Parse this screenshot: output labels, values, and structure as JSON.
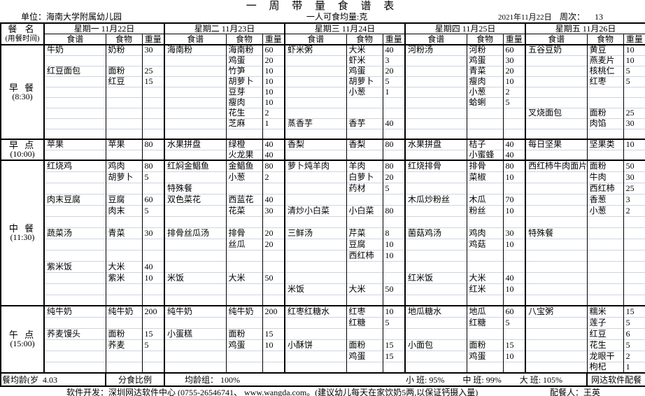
{
  "title": "一 周 带 量 食 谱 表",
  "info": {
    "unit": "单位：海南大学附属幼儿园",
    "portion": "一人可食均量:克",
    "date": "2021年11月22日",
    "week_label": "周次：",
    "week_value": "13"
  },
  "header": {
    "meal_col_title": "餐  名",
    "meal_col_subtitle": "(用餐时间)",
    "sub_columns": [
      "食谱",
      "食物",
      "重量"
    ],
    "days": [
      {
        "label": "星期一 11月22日"
      },
      {
        "label": "星期二 11月23日"
      },
      {
        "label": "星期三 11月24日"
      },
      {
        "label": "星期四 11月25日"
      },
      {
        "label": "星期五 11月26日"
      }
    ]
  },
  "sections": [
    {
      "name": "早 餐",
      "time": "(8:30)",
      "rows": [
        [
          [
            "牛奶",
            "奶粉",
            "30"
          ],
          [
            "海南粉",
            "海南粉",
            "60"
          ],
          [
            "虾米粥",
            "大米",
            "40"
          ],
          [
            "河粉汤",
            "河粉",
            "60"
          ],
          [
            "五谷豆奶",
            "黄豆",
            "10"
          ]
        ],
        [
          [
            "",
            "",
            ""
          ],
          [
            "",
            "鸡蛋",
            "20"
          ],
          [
            "",
            "虾米",
            "3"
          ],
          [
            "",
            "鸡蛋",
            "30"
          ],
          [
            "",
            "燕麦片",
            "10"
          ]
        ],
        [
          [
            "红豆面包",
            "面粉",
            "25"
          ],
          [
            "",
            "竹笋",
            "10"
          ],
          [
            "",
            "鸡蛋",
            "20"
          ],
          [
            "",
            "青菜",
            "20"
          ],
          [
            "",
            "核桃仁",
            "5"
          ]
        ],
        [
          [
            "",
            "红豆",
            "15"
          ],
          [
            "",
            "胡萝卜",
            "10"
          ],
          [
            "",
            "胡萝卜",
            "5"
          ],
          [
            "",
            "瘦肉",
            "10"
          ],
          [
            "",
            "红枣",
            "5"
          ]
        ],
        [
          [
            "",
            "",
            ""
          ],
          [
            "",
            "豆芽",
            "10"
          ],
          [
            "",
            "小葱",
            "1"
          ],
          [
            "",
            "小葱",
            "2"
          ],
          [
            "",
            "",
            ""
          ]
        ],
        [
          [
            "",
            "",
            ""
          ],
          [
            "",
            "瘦肉",
            "10"
          ],
          [
            "",
            "",
            ""
          ],
          [
            "",
            "蛤蜊",
            "5"
          ],
          [
            "",
            "",
            ""
          ]
        ],
        [
          [
            "",
            "",
            ""
          ],
          [
            "",
            "花生",
            "2"
          ],
          [
            "",
            "",
            ""
          ],
          [
            "",
            "",
            ""
          ],
          [
            "叉烧面包",
            "面粉",
            "25"
          ]
        ],
        [
          [
            "",
            "",
            ""
          ],
          [
            "",
            "芝麻",
            "1"
          ],
          [
            "蒸香芋",
            "香芋",
            "40"
          ],
          [
            "",
            "",
            ""
          ],
          [
            "",
            "肉馅",
            "30"
          ]
        ],
        [
          [
            "",
            "",
            ""
          ],
          [
            "",
            "",
            ""
          ],
          [
            "",
            "",
            ""
          ],
          [
            "",
            "",
            ""
          ],
          [
            "",
            "",
            ""
          ]
        ]
      ]
    },
    {
      "name": "早 点",
      "time": "(10:00)",
      "rows": [
        [
          [
            "苹果",
            "苹果",
            "80"
          ],
          [
            "水果拼盘",
            "绿橙",
            "40"
          ],
          [
            "香梨",
            "香梨",
            "80"
          ],
          [
            "水果拼盘",
            "桔子",
            "40"
          ],
          [
            "每日坚果",
            "坚果类",
            "10"
          ]
        ],
        [
          [
            "",
            "",
            ""
          ],
          [
            "",
            "火龙果",
            "40"
          ],
          [
            "",
            "",
            ""
          ],
          [
            "",
            "小蜜蜂",
            "40"
          ],
          [
            "",
            "",
            ""
          ]
        ]
      ]
    },
    {
      "name": "中 餐",
      "time": "(11:30)",
      "rows": [
        [
          [
            "红烧鸡",
            "鸡肉",
            "80"
          ],
          [
            "红焖金鲳鱼",
            "金鲳鱼",
            "80"
          ],
          [
            "萝卜炖羊肉",
            "羊肉",
            "80"
          ],
          [
            "红烧排骨",
            "排骨",
            "80"
          ],
          [
            "西红柿牛肉面片",
            "面粉",
            "50"
          ]
        ],
        [
          [
            "",
            "胡萝卜",
            "5"
          ],
          [
            "",
            "小葱",
            "2"
          ],
          [
            "",
            "白萝卜",
            "20"
          ],
          [
            "",
            "菜椒",
            "10"
          ],
          [
            "",
            "牛肉",
            "30"
          ]
        ],
        [
          [
            "",
            "",
            ""
          ],
          [
            "特殊餐",
            "",
            ""
          ],
          [
            "",
            "药材",
            "5"
          ],
          [
            "",
            "",
            ""
          ],
          [
            "",
            "西红柿",
            "25"
          ]
        ],
        [
          [
            "肉末豆腐",
            "豆腐",
            "60"
          ],
          [
            "双色菜花",
            "西蓝花",
            "40"
          ],
          [
            "",
            "",
            ""
          ],
          [
            "木瓜炒粉丝",
            "木瓜",
            "70"
          ],
          [
            "",
            "香葱",
            "3"
          ]
        ],
        [
          [
            "",
            "肉末",
            "5"
          ],
          [
            "",
            "花菜",
            "30"
          ],
          [
            "清炒小白菜",
            "小白菜",
            "80"
          ],
          [
            "",
            "粉丝",
            "10"
          ],
          [
            "",
            "小葱",
            "2"
          ]
        ],
        [
          [
            "",
            "",
            ""
          ],
          [
            "",
            "",
            ""
          ],
          [
            "",
            "",
            ""
          ],
          [
            "",
            "",
            ""
          ],
          [
            "",
            "",
            ""
          ]
        ],
        [
          [
            "蔬菜汤",
            "青菜",
            "30"
          ],
          [
            "排骨丝瓜汤",
            "排骨",
            "20"
          ],
          [
            "三鲜汤",
            "芹菜",
            "8"
          ],
          [
            "菌菇鸡汤",
            "鸡肉",
            "30"
          ],
          [
            "特殊餐",
            "",
            ""
          ]
        ],
        [
          [
            "",
            "",
            ""
          ],
          [
            "",
            "丝瓜",
            "20"
          ],
          [
            "",
            "豆腐",
            "10"
          ],
          [
            "",
            "鸡菇",
            "10"
          ],
          [
            "",
            "",
            ""
          ]
        ],
        [
          [
            "",
            "",
            ""
          ],
          [
            "",
            "",
            ""
          ],
          [
            "",
            "西红柿",
            "10"
          ],
          [
            "",
            "",
            ""
          ],
          [
            "",
            "",
            ""
          ]
        ],
        [
          [
            "紫米饭",
            "大米",
            "40"
          ],
          [
            "",
            "",
            ""
          ],
          [
            "",
            "",
            ""
          ],
          [
            "",
            "",
            ""
          ],
          [
            "",
            "",
            ""
          ]
        ],
        [
          [
            "",
            "紫米",
            "10"
          ],
          [
            "米饭",
            "大米",
            "50"
          ],
          [
            "",
            "",
            ""
          ],
          [
            "红米饭",
            "大米",
            "40"
          ],
          [
            "",
            "",
            ""
          ]
        ],
        [
          [
            "",
            "",
            ""
          ],
          [
            "",
            "",
            ""
          ],
          [
            "米饭",
            "大米",
            "50"
          ],
          [
            "",
            "红米",
            "10"
          ],
          [
            "",
            "",
            ""
          ]
        ],
        [
          [
            "",
            "",
            ""
          ],
          [
            "",
            "",
            ""
          ],
          [
            "",
            "",
            ""
          ],
          [
            "",
            "",
            ""
          ],
          [
            "",
            "",
            ""
          ]
        ]
      ]
    },
    {
      "name": "午 点",
      "time": "(15:00)",
      "rows": [
        [
          [
            "纯牛奶",
            "纯牛奶",
            "200"
          ],
          [
            "纯牛奶",
            "纯牛奶",
            "200"
          ],
          [
            "红枣红糖水",
            "红枣",
            "10"
          ],
          [
            "地瓜糖水",
            "地瓜",
            "60"
          ],
          [
            "八宝粥",
            "糯米",
            "15"
          ]
        ],
        [
          [
            "",
            "",
            ""
          ],
          [
            "",
            "",
            ""
          ],
          [
            "",
            "红糖",
            "5"
          ],
          [
            "",
            "红糖",
            "5"
          ],
          [
            "",
            "莲子",
            "5"
          ]
        ],
        [
          [
            "荞麦馒头",
            "面粉",
            "15"
          ],
          [
            "小蛋糕",
            "面粉",
            "15"
          ],
          [
            "",
            "",
            ""
          ],
          [
            "",
            "",
            ""
          ],
          [
            "",
            "红豆",
            "6"
          ]
        ],
        [
          [
            "",
            "荞麦",
            "5"
          ],
          [
            "",
            "鸡蛋",
            "10"
          ],
          [
            "小酥饼",
            "面粉",
            "15"
          ],
          [
            "小面包",
            "面粉",
            "15"
          ],
          [
            "",
            "花生",
            "5"
          ]
        ],
        [
          [
            "",
            "",
            ""
          ],
          [
            "",
            "",
            ""
          ],
          [
            "",
            "鸡蛋",
            "15"
          ],
          [
            "",
            "鸡蛋",
            "10"
          ],
          [
            "",
            "龙眼干",
            "2"
          ]
        ],
        [
          [
            "",
            "",
            ""
          ],
          [
            "",
            "",
            ""
          ],
          [
            "",
            "",
            ""
          ],
          [
            "",
            "",
            ""
          ],
          [
            "",
            "枸杞",
            "1"
          ]
        ]
      ]
    }
  ],
  "summary": {
    "avg_age_label": "餐均龄(岁",
    "avg_age_value": "4.03",
    "ratio_label": "分食比例",
    "age_group": "均龄组： 100%",
    "classes": [
      "小 班: 95%",
      "中 班: 99%",
      "大 班: 105%"
    ],
    "software_badge": "网达软件配餐"
  },
  "footer": {
    "developer": "软件开发：深圳网达软件中心 (0755-26546741、  www.wangda.com。(建议幼儿每天在家饮奶5两,以保证钙摄入量)",
    "planner": "配餐人：王英"
  }
}
